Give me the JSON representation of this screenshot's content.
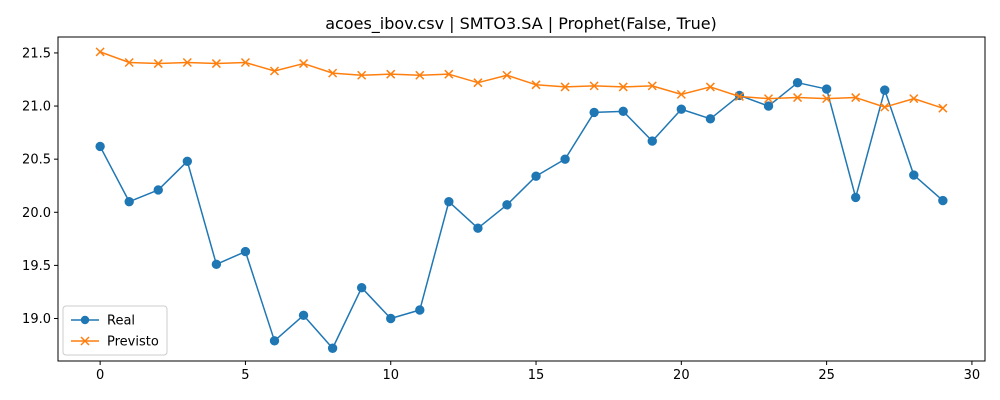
{
  "chart_data": {
    "type": "line",
    "title": "acoes_ibov.csv | SMTO3.SA | Prophet(False, True)",
    "xlabel": "",
    "ylabel": "",
    "xlim": [
      -1.45,
      30.45
    ],
    "ylim": [
      18.6,
      21.65
    ],
    "xticks": [
      0,
      5,
      10,
      15,
      20,
      25,
      30
    ],
    "yticks": [
      19.0,
      19.5,
      20.0,
      20.5,
      21.0,
      21.5
    ],
    "grid": false,
    "legend": "bottom-left",
    "x": [
      0,
      1,
      2,
      3,
      4,
      5,
      6,
      7,
      8,
      9,
      10,
      11,
      12,
      13,
      14,
      15,
      16,
      17,
      18,
      19,
      20,
      21,
      22,
      23,
      24,
      25,
      26,
      27,
      28,
      29
    ],
    "series": [
      {
        "name": "Real",
        "color": "#1f77b4",
        "marker": "circle",
        "values": [
          20.62,
          20.1,
          20.21,
          20.48,
          19.51,
          19.63,
          18.79,
          19.03,
          18.72,
          19.29,
          19.0,
          19.08,
          20.1,
          19.85,
          20.07,
          20.34,
          20.5,
          20.94,
          20.95,
          20.67,
          20.97,
          20.88,
          21.1,
          21.0,
          21.22,
          21.16,
          20.14,
          21.15,
          20.35,
          20.11
        ]
      },
      {
        "name": "Previsto",
        "color": "#ff7f0e",
        "marker": "x",
        "values": [
          21.51,
          21.41,
          21.4,
          21.41,
          21.4,
          21.41,
          21.33,
          21.4,
          21.31,
          21.29,
          21.3,
          21.29,
          21.3,
          21.22,
          21.29,
          21.2,
          21.18,
          21.19,
          21.18,
          21.19,
          21.11,
          21.18,
          21.09,
          21.07,
          21.08,
          21.07,
          21.08,
          20.99,
          21.07,
          20.98
        ]
      }
    ]
  }
}
